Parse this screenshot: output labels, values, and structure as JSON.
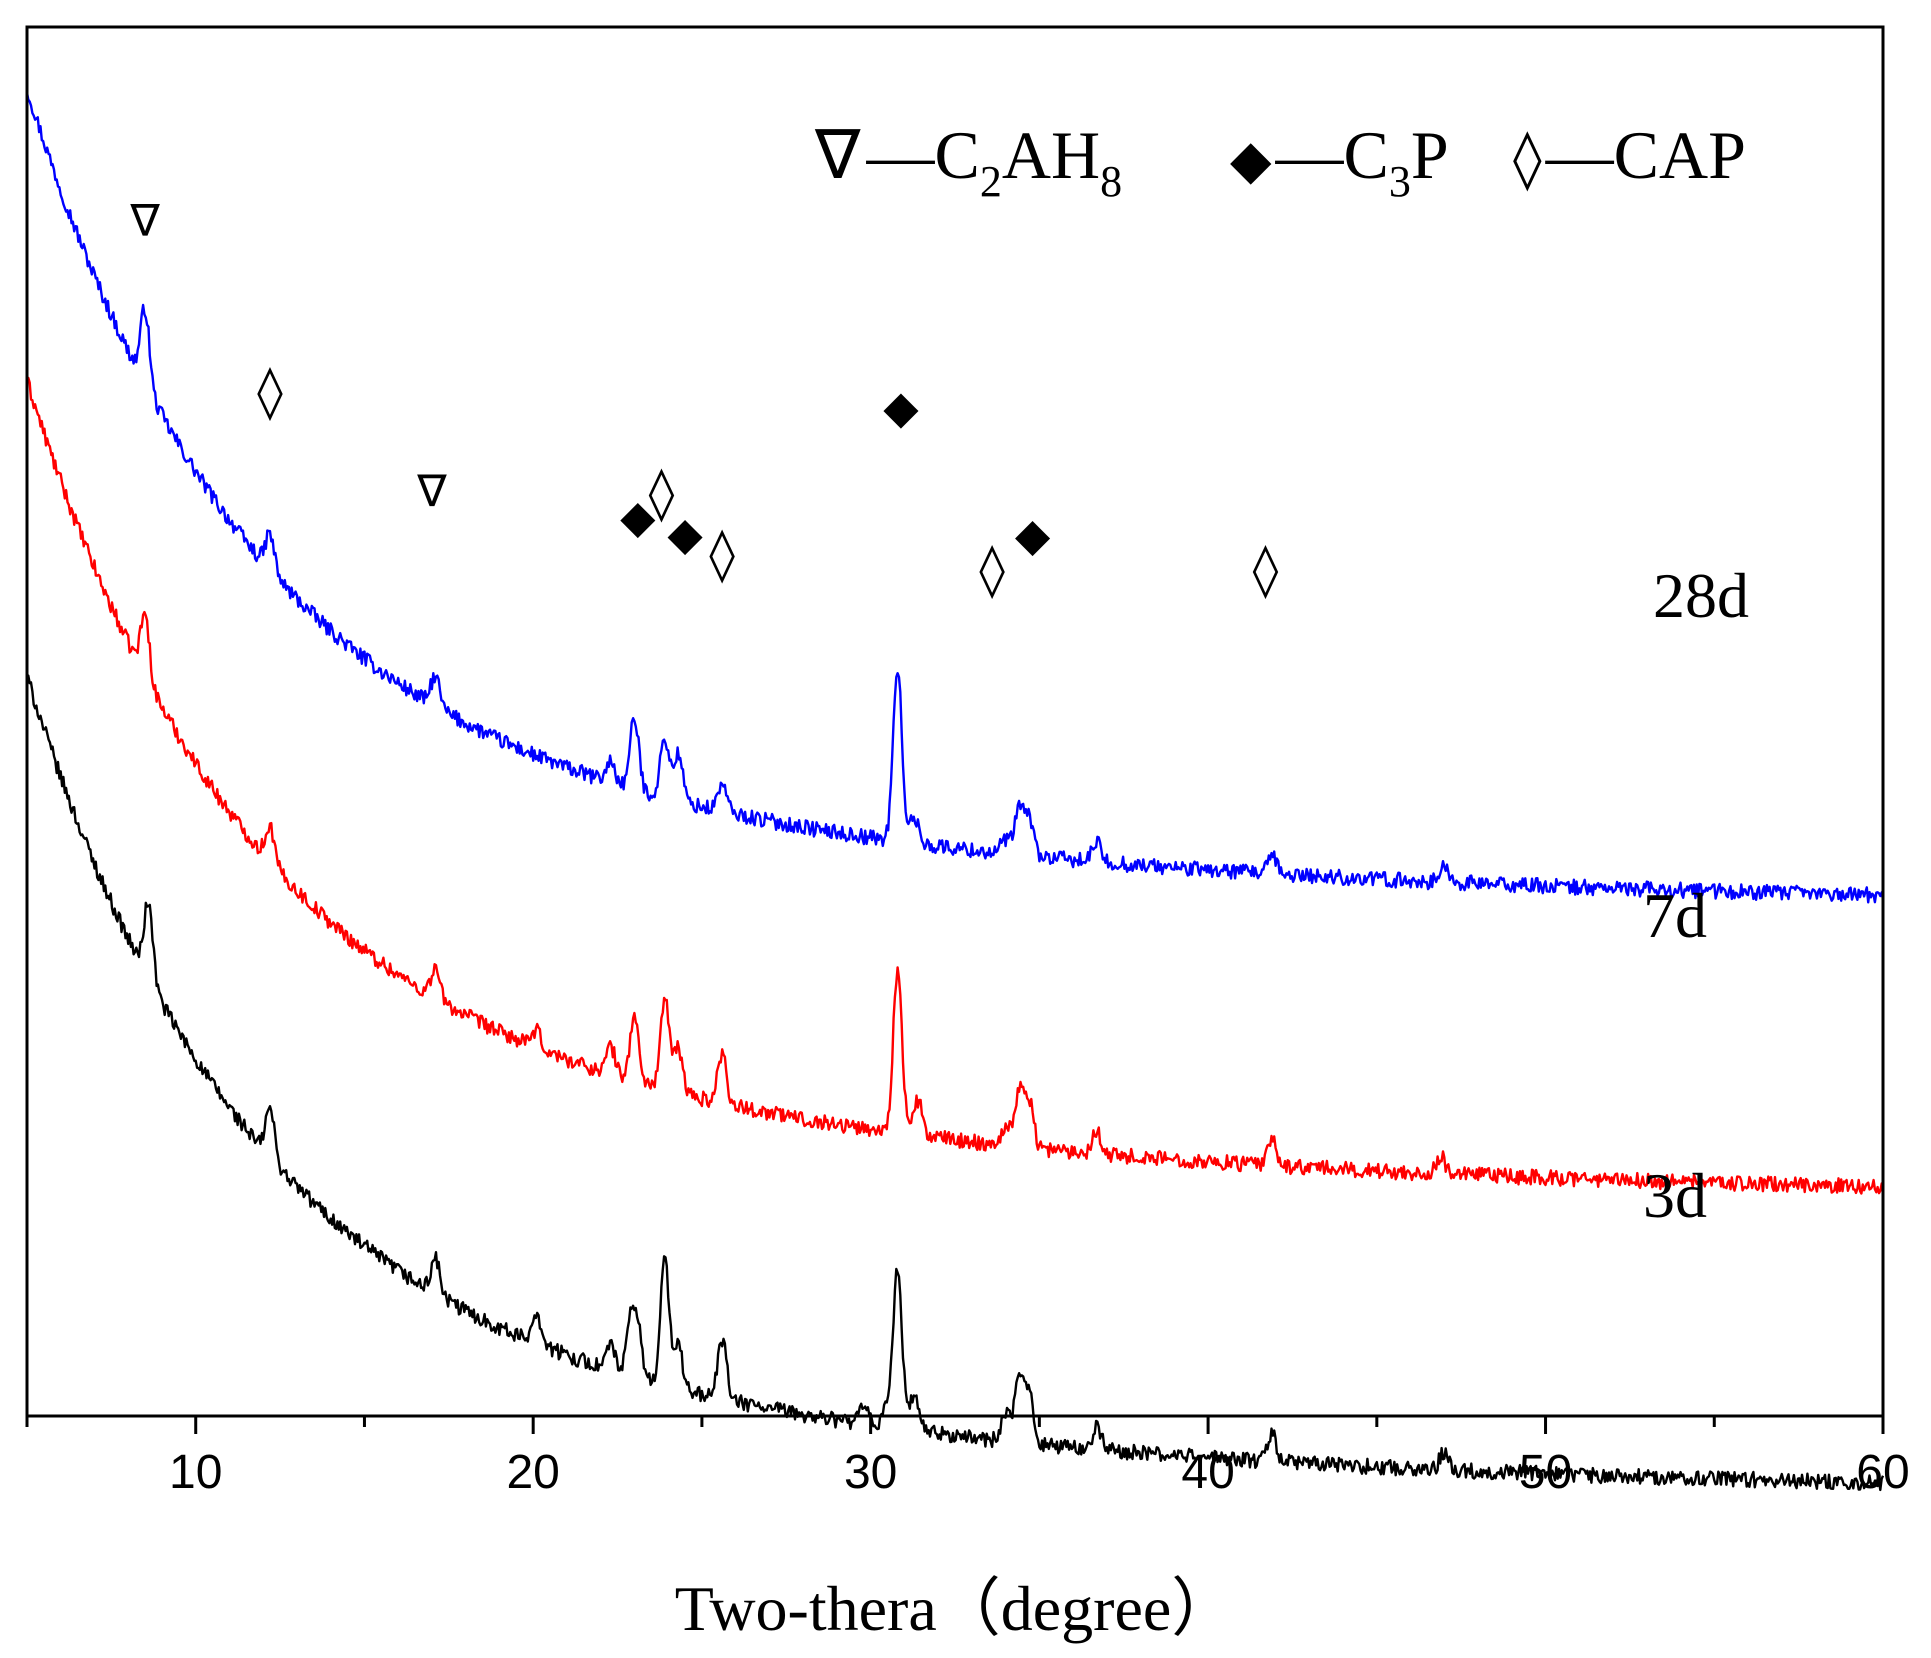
{
  "chart_data": {
    "type": "line",
    "title": "",
    "xlabel": "Two-thera（degree）",
    "ylabel": "",
    "xlim": [
      5,
      60
    ],
    "ylim": [
      0,
      100
    ],
    "xticks": [
      "10",
      "20",
      "30",
      "40",
      "50",
      "60"
    ],
    "grid": false,
    "legend": {
      "placement": "top-right",
      "entries": [
        {
          "symbol": "∇",
          "label": "C",
          "sub": "2",
          "label2": "AH",
          "sub2": "8"
        },
        {
          "symbol": "◆",
          "label": "C",
          "sub": "3",
          "label2": "P",
          "sub2": ""
        },
        {
          "symbol": "◊",
          "label": "CAP",
          "sub": "",
          "label2": "",
          "sub2": ""
        }
      ]
    },
    "series": [
      {
        "name": "28d",
        "color": "#0000ff",
        "background": {
          "start": 97,
          "a": 44,
          "decay": 0.16,
          "mid": 15,
          "midDecay": 0.05,
          "tail": 37.5
        },
        "peaks": [
          [
            8.5,
            5.5
          ],
          [
            12.2,
            2.6
          ],
          [
            17.1,
            2.2
          ],
          [
            22.3,
            1.5
          ],
          [
            23.0,
            5.1
          ],
          [
            23.9,
            4.3
          ],
          [
            24.3,
            3.4
          ],
          [
            25.6,
            2.0
          ],
          [
            30.8,
            12.5
          ],
          [
            31.3,
            1.8
          ],
          [
            34.0,
            1.0
          ],
          [
            34.4,
            3.4
          ],
          [
            34.7,
            2.7
          ],
          [
            36.7,
            1.4
          ],
          [
            41.9,
            1.2
          ],
          [
            47.0,
            1.1
          ]
        ]
      },
      {
        "name": "7d",
        "color": "#ff0000",
        "background": {
          "start": 75,
          "a": 44,
          "decay": 0.16,
          "mid": 15,
          "midDecay": 0.05,
          "tail": 16.5
        },
        "peaks": [
          [
            8.5,
            4.5
          ],
          [
            12.2,
            2.6
          ],
          [
            17.1,
            2.2
          ],
          [
            20.1,
            1.2
          ],
          [
            22.3,
            2.0
          ],
          [
            23.0,
            4.6
          ],
          [
            23.9,
            6.5
          ],
          [
            24.3,
            3.2
          ],
          [
            25.6,
            3.6
          ],
          [
            30.8,
            11.8
          ],
          [
            31.4,
            2.5
          ],
          [
            34.0,
            1.4
          ],
          [
            34.4,
            4.0
          ],
          [
            34.7,
            3.4
          ],
          [
            36.7,
            1.7
          ],
          [
            41.9,
            1.8
          ],
          [
            46.9,
            1.2
          ]
        ]
      },
      {
        "name": "3d",
        "color": "#000000",
        "background": {
          "start": 53,
          "a": 44,
          "decay": 0.16,
          "mid": 15,
          "midDecay": 0.05,
          "tail": -4.8
        },
        "peaks": [
          [
            8.6,
            5.5
          ],
          [
            12.2,
            3.6
          ],
          [
            17.1,
            2.6
          ],
          [
            20.1,
            2.3
          ],
          [
            22.3,
            1.8
          ],
          [
            22.9,
            3.7
          ],
          [
            23.1,
            3.2
          ],
          [
            23.9,
            9.0
          ],
          [
            24.3,
            3.0
          ],
          [
            25.6,
            4.3
          ],
          [
            29.8,
            1.2
          ],
          [
            30.5,
            1.4
          ],
          [
            30.8,
            11.6
          ],
          [
            31.3,
            2.6
          ],
          [
            34.0,
            2.0
          ],
          [
            34.4,
            4.5
          ],
          [
            34.7,
            3.8
          ],
          [
            36.7,
            1.6
          ],
          [
            41.9,
            2.0
          ],
          [
            47.0,
            1.3
          ]
        ]
      }
    ],
    "series_labels": [
      {
        "text": "28d",
        "series": "28d"
      },
      {
        "text": "7d",
        "series": "7d"
      },
      {
        "text": "3d",
        "series": "3d"
      }
    ],
    "annotations": [
      {
        "symbol": "∇",
        "phase": "C2AH8",
        "x": 8.5,
        "y": 85
      },
      {
        "symbol": "◊",
        "phase": "CAP",
        "x": 12.2,
        "y": 72.5
      },
      {
        "symbol": "∇",
        "phase": "C2AH8",
        "x": 17.0,
        "y": 65.5
      },
      {
        "symbol": "◆",
        "phase": "C3P",
        "x": 23.1,
        "y": 63.6
      },
      {
        "symbol": "◊",
        "phase": "CAP",
        "x": 23.8,
        "y": 65.2
      },
      {
        "symbol": "◆",
        "phase": "C3P",
        "x": 24.5,
        "y": 62.4
      },
      {
        "symbol": "◊",
        "phase": "CAP",
        "x": 25.6,
        "y": 60.8
      },
      {
        "symbol": "◆",
        "phase": "C3P",
        "x": 30.9,
        "y": 71.5
      },
      {
        "symbol": "◊",
        "phase": "CAP",
        "x": 33.6,
        "y": 59.7
      },
      {
        "symbol": "◆",
        "phase": "C3P",
        "x": 34.8,
        "y": 62.3
      },
      {
        "symbol": "◊",
        "phase": "CAP",
        "x": 41.7,
        "y": 59.7
      }
    ]
  }
}
